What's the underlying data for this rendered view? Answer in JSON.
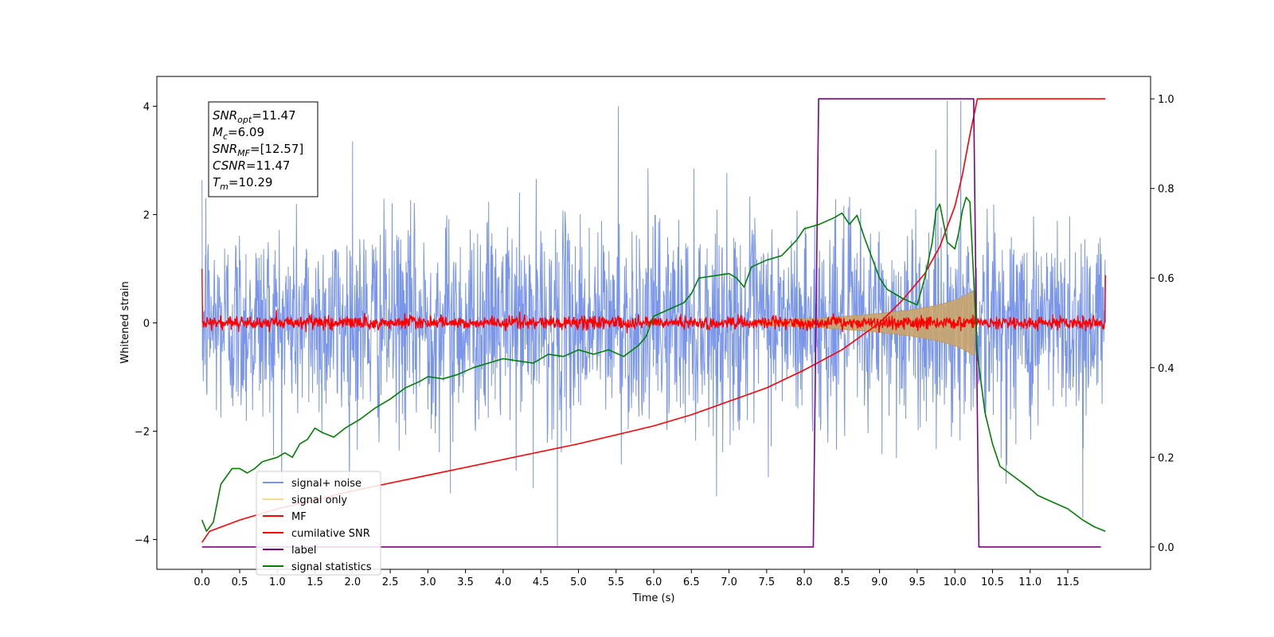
{
  "chart_data": {
    "type": "line",
    "xlabel": "Time (s)",
    "ylabel_left": "Whitened strain",
    "ylabel_right": "",
    "xlim": [
      -0.6,
      12.6
    ],
    "ylim_left": [
      -4.55,
      4.55
    ],
    "ylim_right": [
      -0.05,
      1.05
    ],
    "x_ticks": [
      0.0,
      0.5,
      1.0,
      1.5,
      2.0,
      2.5,
      3.0,
      3.5,
      4.0,
      4.5,
      5.0,
      5.5,
      6.0,
      6.5,
      7.0,
      7.5,
      8.0,
      8.5,
      9.0,
      9.5,
      10.0,
      10.5,
      11.0,
      11.5
    ],
    "x_tick_labels": [
      "0.0",
      "0.5",
      "1.0",
      "1.5",
      "2.0",
      "2.5",
      "3.0",
      "3.5",
      "4.0",
      "4.5",
      "5.0",
      "5.5",
      "6.0",
      "6.5",
      "7.0",
      "7.5",
      "8.0",
      "8.5",
      "9.0",
      "9.5",
      "10.0",
      "10.5",
      "11.0",
      "11.5"
    ],
    "y_ticks_left": [
      -4,
      -2,
      0,
      2,
      4
    ],
    "y_tick_labels_left": [
      "−4",
      "−2",
      "0",
      "2",
      "4"
    ],
    "y_ticks_right": [
      0.0,
      0.2,
      0.4,
      0.6,
      0.8,
      1.0
    ],
    "y_tick_labels_right": [
      "0.0",
      "0.2",
      "0.4",
      "0.6",
      "0.8",
      "1.0"
    ],
    "grid": false,
    "legend_position": "lower-left",
    "annotation": [
      {
        "main": "SNR",
        "sub": "opt",
        "rest": "=11.47"
      },
      {
        "main": "M",
        "sub": "c",
        "rest": "=6.09"
      },
      {
        "main": "SNR",
        "sub": "MF",
        "rest": "=[12.57]"
      },
      {
        "main": "CSNR",
        "sub": "",
        "rest": "=11.47"
      },
      {
        "main": "T",
        "sub": "m",
        "rest": "=10.29"
      }
    ],
    "series": [
      {
        "name": "signal+ noise",
        "axis": "left",
        "color": "#4169e1",
        "description_only": false,
        "noise_sigma": 0.95,
        "x_range": [
          0.0,
          12.0
        ],
        "spikes": [
          {
            "x": 0.05,
            "y": 2.3
          },
          {
            "x": 2.0,
            "y": 3.35
          },
          {
            "x": 4.72,
            "y": -4.15
          },
          {
            "x": 5.53,
            "y": 4.0
          },
          {
            "x": 9.9,
            "y": 4.1
          },
          {
            "x": 10.08,
            "y": 4.1
          },
          {
            "x": 11.7,
            "y": -3.6
          },
          {
            "x": 3.3,
            "y": -3.15
          },
          {
            "x": 4.4,
            "y": -3.05
          }
        ]
      },
      {
        "name": "signal only",
        "axis": "left",
        "color": "#f5c242",
        "envelope": [
          [
            7.3,
            0.03
          ],
          [
            7.6,
            0.05
          ],
          [
            7.9,
            0.07
          ],
          [
            8.2,
            0.09
          ],
          [
            8.5,
            0.12
          ],
          [
            8.8,
            0.15
          ],
          [
            9.1,
            0.19
          ],
          [
            9.4,
            0.24
          ],
          [
            9.7,
            0.31
          ],
          [
            9.9,
            0.38
          ],
          [
            10.05,
            0.45
          ],
          [
            10.15,
            0.52
          ],
          [
            10.22,
            0.58
          ],
          [
            10.26,
            0.6
          ],
          [
            10.27,
            0.0
          ]
        ]
      },
      {
        "name": "MF",
        "axis": "left",
        "color": "#ff0000",
        "noise_sigma": 0.06,
        "x_range": [
          0.0,
          12.0
        ],
        "start_value": 1.0,
        "end_value": 0.88
      },
      {
        "name": "cumilative SNR",
        "axis": "right",
        "color": "#ff0000",
        "points": [
          [
            0.0,
            0.01
          ],
          [
            0.1,
            0.035
          ],
          [
            0.5,
            0.06
          ],
          [
            1.0,
            0.085
          ],
          [
            2.0,
            0.125
          ],
          [
            3.0,
            0.16
          ],
          [
            4.0,
            0.195
          ],
          [
            5.0,
            0.23
          ],
          [
            6.0,
            0.27
          ],
          [
            6.5,
            0.295
          ],
          [
            7.0,
            0.325
          ],
          [
            7.5,
            0.355
          ],
          [
            8.0,
            0.395
          ],
          [
            8.5,
            0.44
          ],
          [
            9.0,
            0.5
          ],
          [
            9.3,
            0.55
          ],
          [
            9.6,
            0.61
          ],
          [
            9.8,
            0.67
          ],
          [
            10.0,
            0.76
          ],
          [
            10.1,
            0.83
          ],
          [
            10.2,
            0.92
          ],
          [
            10.3,
            1.0
          ],
          [
            12.0,
            1.0
          ]
        ]
      },
      {
        "name": "label",
        "axis": "right",
        "color": "#800080",
        "points": [
          [
            0.0,
            0.0
          ],
          [
            8.12,
            0.0
          ],
          [
            8.19,
            1.0
          ],
          [
            10.25,
            1.0
          ],
          [
            10.32,
            0.0
          ],
          [
            11.94,
            0.0
          ]
        ]
      },
      {
        "name": "signal statistics",
        "axis": "right",
        "color": "#008000",
        "points": [
          [
            0.0,
            0.06
          ],
          [
            0.06,
            0.035
          ],
          [
            0.15,
            0.055
          ],
          [
            0.25,
            0.14
          ],
          [
            0.4,
            0.175
          ],
          [
            0.5,
            0.175
          ],
          [
            0.6,
            0.165
          ],
          [
            0.7,
            0.175
          ],
          [
            0.8,
            0.19
          ],
          [
            1.0,
            0.2
          ],
          [
            1.1,
            0.21
          ],
          [
            1.2,
            0.2
          ],
          [
            1.3,
            0.23
          ],
          [
            1.4,
            0.24
          ],
          [
            1.5,
            0.265
          ],
          [
            1.6,
            0.255
          ],
          [
            1.75,
            0.245
          ],
          [
            1.9,
            0.265
          ],
          [
            2.1,
            0.285
          ],
          [
            2.3,
            0.31
          ],
          [
            2.5,
            0.33
          ],
          [
            2.7,
            0.355
          ],
          [
            2.9,
            0.37
          ],
          [
            3.0,
            0.38
          ],
          [
            3.2,
            0.375
          ],
          [
            3.4,
            0.385
          ],
          [
            3.6,
            0.4
          ],
          [
            3.8,
            0.41
          ],
          [
            4.0,
            0.42
          ],
          [
            4.2,
            0.415
          ],
          [
            4.4,
            0.41
          ],
          [
            4.6,
            0.43
          ],
          [
            4.8,
            0.425
          ],
          [
            5.0,
            0.44
          ],
          [
            5.2,
            0.43
          ],
          [
            5.4,
            0.44
          ],
          [
            5.6,
            0.425
          ],
          [
            5.8,
            0.45
          ],
          [
            5.9,
            0.47
          ],
          [
            6.0,
            0.515
          ],
          [
            6.2,
            0.53
          ],
          [
            6.4,
            0.545
          ],
          [
            6.5,
            0.565
          ],
          [
            6.6,
            0.6
          ],
          [
            6.8,
            0.605
          ],
          [
            7.0,
            0.61
          ],
          [
            7.1,
            0.6
          ],
          [
            7.2,
            0.58
          ],
          [
            7.3,
            0.625
          ],
          [
            7.5,
            0.64
          ],
          [
            7.7,
            0.65
          ],
          [
            7.9,
            0.685
          ],
          [
            8.0,
            0.71
          ],
          [
            8.2,
            0.72
          ],
          [
            8.4,
            0.735
          ],
          [
            8.5,
            0.745
          ],
          [
            8.6,
            0.72
          ],
          [
            8.7,
            0.74
          ],
          [
            8.8,
            0.69
          ],
          [
            9.0,
            0.6
          ],
          [
            9.1,
            0.575
          ],
          [
            9.3,
            0.555
          ],
          [
            9.5,
            0.54
          ],
          [
            9.6,
            0.6
          ],
          [
            9.7,
            0.68
          ],
          [
            9.75,
            0.75
          ],
          [
            9.8,
            0.765
          ],
          [
            9.9,
            0.68
          ],
          [
            10.0,
            0.665
          ],
          [
            10.05,
            0.7
          ],
          [
            10.1,
            0.75
          ],
          [
            10.15,
            0.78
          ],
          [
            10.2,
            0.77
          ],
          [
            10.25,
            0.6
          ],
          [
            10.3,
            0.43
          ],
          [
            10.4,
            0.3
          ],
          [
            10.5,
            0.23
          ],
          [
            10.6,
            0.18
          ],
          [
            10.8,
            0.155
          ],
          [
            11.0,
            0.13
          ],
          [
            11.1,
            0.115
          ],
          [
            11.3,
            0.1
          ],
          [
            11.5,
            0.085
          ],
          [
            11.7,
            0.06
          ],
          [
            11.85,
            0.045
          ],
          [
            12.0,
            0.035
          ]
        ]
      }
    ]
  }
}
